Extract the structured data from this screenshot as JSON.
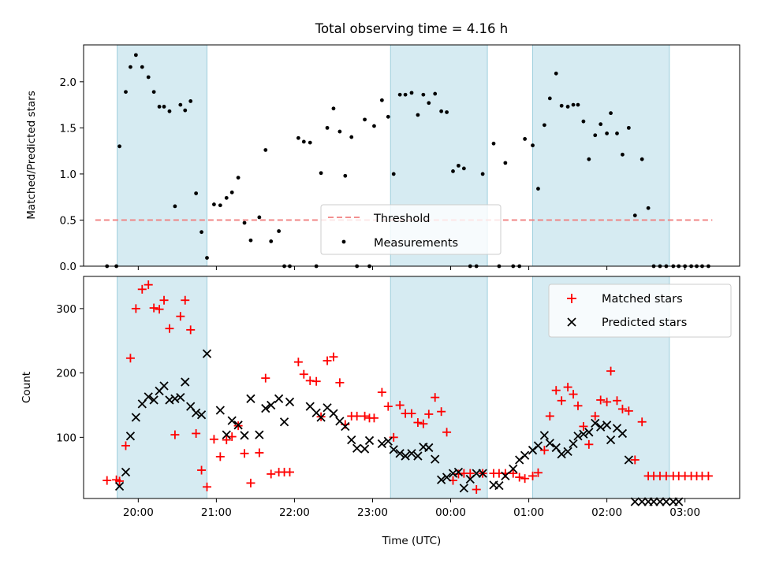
{
  "chart_data": [
    {
      "type": "scatter",
      "title": "Total observing time = 4.16 h",
      "ylabel": "Matched/Predicted stars",
      "xlabel": "",
      "xlim": [
        19.3,
        27.7
      ],
      "ylim": [
        0,
        2.4
      ],
      "yticks": [
        0.0,
        0.5,
        1.0,
        1.5,
        2.0
      ],
      "ytick_labels": [
        "0.0",
        "0.5",
        "1.0",
        "1.5",
        "2.0"
      ],
      "xticks": [
        20,
        21,
        22,
        23,
        24,
        25,
        26,
        27
      ],
      "shaded_intervals": [
        [
          19.73,
          20.88
        ],
        [
          23.23,
          24.47
        ],
        [
          25.05,
          26.8
        ]
      ],
      "threshold": {
        "name": "Threshold",
        "value": 0.5,
        "x_range": [
          19.45,
          27.35
        ],
        "color": "#f08080"
      },
      "legend": {
        "position": "lower-center",
        "entries": [
          "Threshold",
          "Measurements"
        ]
      },
      "series": [
        {
          "name": "Measurements",
          "color": "#000000",
          "x": [
            19.6,
            19.72,
            19.76,
            19.84,
            19.9,
            19.97,
            20.05,
            20.13,
            20.2,
            20.27,
            20.33,
            20.4,
            20.47,
            20.54,
            20.6,
            20.67,
            20.74,
            20.81,
            20.88,
            20.97,
            21.05,
            21.13,
            21.2,
            21.28,
            21.36,
            21.44,
            21.55,
            21.63,
            21.7,
            21.8,
            21.87,
            21.94,
            22.05,
            22.12,
            22.2,
            22.28,
            22.34,
            22.42,
            22.5,
            22.58,
            22.65,
            22.73,
            22.8,
            22.9,
            22.96,
            23.02,
            23.12,
            23.2,
            23.27,
            23.35,
            23.42,
            23.5,
            23.58,
            23.65,
            23.72,
            23.8,
            23.88,
            23.95,
            24.03,
            24.1,
            24.17,
            24.25,
            24.33,
            24.41,
            24.55,
            24.62,
            24.7,
            24.8,
            24.88,
            24.95,
            25.05,
            25.12,
            25.2,
            25.27,
            25.35,
            25.42,
            25.5,
            25.57,
            25.63,
            25.7,
            25.77,
            25.85,
            25.92,
            26.0,
            26.05,
            26.13,
            26.2,
            26.28,
            26.36,
            26.45,
            26.53,
            26.6,
            26.68,
            26.76,
            26.85,
            26.92,
            27.0,
            27.08,
            27.15,
            27.22,
            27.3
          ],
          "y": [
            0.0,
            0.0,
            1.3,
            1.89,
            2.16,
            2.29,
            2.16,
            2.05,
            1.89,
            1.73,
            1.73,
            1.68,
            0.65,
            1.75,
            1.69,
            1.79,
            0.79,
            0.37,
            0.09,
            0.67,
            0.66,
            0.74,
            0.8,
            0.96,
            0.47,
            0.28,
            0.53,
            1.26,
            0.27,
            0.38,
            0.0,
            0.0,
            1.39,
            1.35,
            1.34,
            0.0,
            1.01,
            1.5,
            1.71,
            1.46,
            0.98,
            1.4,
            0.0,
            1.59,
            0.0,
            1.52,
            1.8,
            1.62,
            1.0,
            1.86,
            1.86,
            1.88,
            1.64,
            1.86,
            1.77,
            1.87,
            1.68,
            1.67,
            1.03,
            1.09,
            1.06,
            0.0,
            0.0,
            1.0,
            1.33,
            0.0,
            1.12,
            0.0,
            0.0,
            1.38,
            1.31,
            0.84,
            1.53,
            1.82,
            2.09,
            1.74,
            1.73,
            1.75,
            1.75,
            1.57,
            1.16,
            1.42,
            1.54,
            1.44,
            1.66,
            1.44,
            1.21,
            1.5,
            0.55,
            1.16,
            0.63,
            0.0,
            0.0,
            0.0,
            0.0,
            0.0,
            0.0,
            0.0,
            0.0,
            0.0,
            0.0
          ]
        }
      ]
    },
    {
      "type": "scatter",
      "title": "",
      "ylabel": "Count",
      "xlabel": "Time (UTC)",
      "xlim": [
        19.3,
        27.7
      ],
      "ylim": [
        5,
        350
      ],
      "yticks": [
        100,
        200,
        300
      ],
      "ytick_labels": [
        "100",
        "200",
        "300"
      ],
      "xticks": [
        20,
        21,
        22,
        23,
        24,
        25,
        26,
        27
      ],
      "xtick_labels": [
        "20:00",
        "21:00",
        "22:00",
        "23:00",
        "00:00",
        "01:00",
        "02:00",
        "03:00"
      ],
      "shaded_intervals": [
        [
          19.73,
          20.88
        ],
        [
          23.23,
          24.47
        ],
        [
          25.05,
          26.8
        ]
      ],
      "legend": {
        "position": "top-right",
        "entries": [
          "Matched stars",
          "Predicted stars"
        ]
      },
      "series": [
        {
          "name": "Matched stars",
          "marker": "plus",
          "color": "#ff0000",
          "x": [
            19.6,
            19.72,
            19.76,
            19.84,
            19.9,
            19.97,
            20.05,
            20.13,
            20.2,
            20.27,
            20.33,
            20.4,
            20.47,
            20.54,
            20.6,
            20.67,
            20.74,
            20.81,
            20.88,
            20.97,
            21.05,
            21.13,
            21.2,
            21.28,
            21.36,
            21.44,
            21.55,
            21.63,
            21.7,
            21.8,
            21.87,
            21.94,
            22.05,
            22.12,
            22.2,
            22.28,
            22.34,
            22.42,
            22.5,
            22.58,
            22.65,
            22.73,
            22.8,
            22.9,
            22.96,
            23.02,
            23.12,
            23.2,
            23.27,
            23.35,
            23.42,
            23.5,
            23.58,
            23.65,
            23.72,
            23.8,
            23.88,
            23.95,
            24.03,
            24.1,
            24.17,
            24.25,
            24.33,
            24.41,
            24.55,
            24.62,
            24.7,
            24.8,
            24.88,
            24.95,
            25.05,
            25.12,
            25.2,
            25.27,
            25.35,
            25.42,
            25.5,
            25.57,
            25.63,
            25.7,
            25.77,
            25.85,
            25.92,
            26.0,
            26.05,
            26.13,
            26.2,
            26.28,
            26.36,
            26.45,
            26.53,
            26.6,
            26.68,
            26.76,
            26.85,
            26.92,
            27.0,
            27.08,
            27.15,
            27.22,
            27.3
          ],
          "y": [
            33,
            34,
            32,
            87,
            223,
            300,
            330,
            337,
            301,
            299,
            313,
            269,
            104,
            288,
            313,
            267,
            106,
            49,
            23,
            97,
            70,
            96,
            101,
            118,
            75,
            29,
            76,
            192,
            43,
            46,
            46,
            46,
            217,
            198,
            188,
            187,
            132,
            219,
            225,
            185,
            120,
            133,
            133,
            133,
            130,
            130,
            170,
            148,
            100,
            150,
            137,
            137,
            123,
            121,
            136,
            162,
            140,
            108,
            33,
            43,
            44,
            44,
            19,
            44,
            44,
            44,
            44,
            44,
            38,
            36,
            40,
            45,
            80,
            133,
            173,
            157,
            178,
            167,
            149,
            117,
            89,
            133,
            158,
            155,
            203,
            157,
            144,
            141,
            65,
            124,
            40,
            40,
            40,
            40,
            40,
            40,
            40,
            40,
            40,
            40,
            40
          ]
        },
        {
          "name": "Predicted stars",
          "marker": "x",
          "color": "#000000",
          "x": [
            19.76,
            19.84,
            19.9,
            19.97,
            20.05,
            20.13,
            20.2,
            20.27,
            20.33,
            20.4,
            20.47,
            20.54,
            20.6,
            20.67,
            20.74,
            20.81,
            20.88,
            21.05,
            21.13,
            21.2,
            21.28,
            21.36,
            21.44,
            21.55,
            21.63,
            21.7,
            21.8,
            21.87,
            21.94,
            22.2,
            22.28,
            22.34,
            22.42,
            22.5,
            22.58,
            22.65,
            22.73,
            22.8,
            22.9,
            22.96,
            23.12,
            23.2,
            23.27,
            23.35,
            23.42,
            23.5,
            23.58,
            23.65,
            23.72,
            23.8,
            23.88,
            23.95,
            24.03,
            24.1,
            24.17,
            24.25,
            24.33,
            24.41,
            24.55,
            24.62,
            24.7,
            24.8,
            24.88,
            24.95,
            25.05,
            25.12,
            25.2,
            25.27,
            25.35,
            25.42,
            25.5,
            25.57,
            25.63,
            25.7,
            25.77,
            25.85,
            25.92,
            26.0,
            26.05,
            26.13,
            26.2,
            26.28,
            26.36,
            26.45,
            26.53,
            26.6,
            26.68,
            26.76,
            26.85,
            26.92
          ],
          "y": [
            24,
            46,
            102,
            131,
            152,
            163,
            158,
            172,
            180,
            158,
            160,
            162,
            186,
            148,
            138,
            135,
            230,
            142,
            104,
            126,
            119,
            103,
            160,
            104,
            145,
            150,
            160,
            124,
            155,
            148,
            138,
            131,
            146,
            137,
            125,
            117,
            96,
            83,
            82,
            95,
            90,
            94,
            81,
            75,
            71,
            75,
            71,
            85,
            84,
            66,
            34,
            38,
            44,
            46,
            21,
            35,
            44,
            44,
            26,
            25,
            40,
            51,
            65,
            72,
            80,
            87,
            103,
            91,
            84,
            74,
            78,
            90,
            102,
            105,
            108,
            122,
            116,
            119,
            96,
            114,
            106,
            65,
            0,
            0,
            0,
            0,
            0,
            0,
            0,
            0
          ]
        }
      ]
    }
  ]
}
